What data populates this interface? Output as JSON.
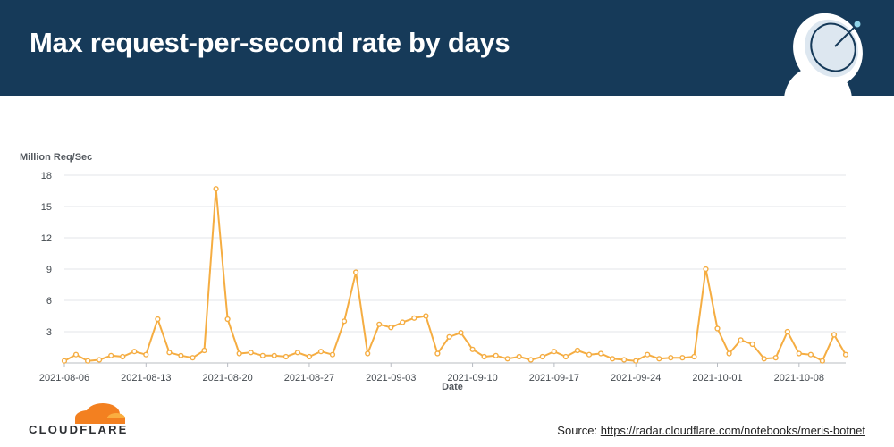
{
  "header": {
    "title": "Max request-per-second rate by days"
  },
  "footer": {
    "logo_text": "CLOUDFLARE",
    "source_label": "Source:",
    "source_url": "https://radar.cloudflare.com/notebooks/meris-botnet"
  },
  "icons": {
    "header_decoration": "satellite-dish-icon",
    "logo": "cloud-icon"
  },
  "colors": {
    "header_bg": "#163a59",
    "line": "#f5ad42",
    "logo_orange": "#f38020",
    "logo_light": "#faae40"
  },
  "chart_data": {
    "type": "line",
    "ylabel": "Million Req/Sec",
    "xlabel": "Date",
    "ylim": [
      0,
      18
    ],
    "yticks": [
      3,
      6,
      9,
      12,
      15,
      18
    ],
    "xticks": [
      "2021-08-06",
      "2021-08-13",
      "2021-08-20",
      "2021-08-27",
      "2021-09-03",
      "2021-09-10",
      "2021-09-17",
      "2021-09-24",
      "2021-10-01",
      "2021-10-08"
    ],
    "x_start": "2021-08-06",
    "grid": true,
    "series": [
      {
        "name": "",
        "values": [
          0.2,
          0.8,
          0.2,
          0.3,
          0.7,
          0.6,
          1.1,
          0.8,
          4.2,
          1.0,
          0.7,
          0.5,
          1.2,
          16.7,
          4.2,
          0.9,
          1.0,
          0.7,
          0.7,
          0.6,
          1.0,
          0.6,
          1.1,
          0.8,
          4.0,
          8.7,
          0.9,
          3.7,
          3.4,
          3.9,
          4.3,
          4.5,
          0.9,
          2.5,
          2.9,
          1.3,
          0.6,
          0.7,
          0.4,
          0.6,
          0.3,
          0.6,
          1.1,
          0.6,
          1.2,
          0.8,
          0.9,
          0.4,
          0.3,
          0.2,
          0.8,
          0.4,
          0.5,
          0.5,
          0.6,
          9.0,
          3.3,
          0.9,
          2.2,
          1.8,
          0.4,
          0.5,
          3.0,
          0.9,
          0.8,
          0.2,
          2.7,
          0.8
        ]
      }
    ]
  }
}
